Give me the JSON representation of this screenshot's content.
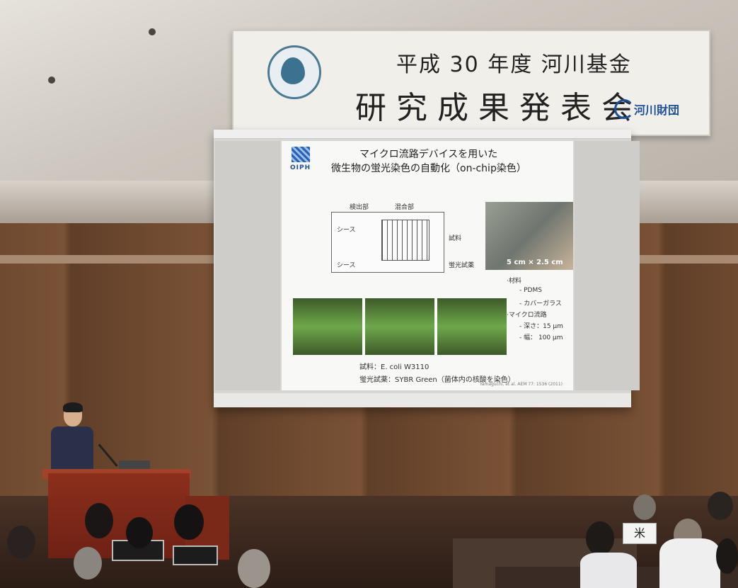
{
  "banner": {
    "line1": "平成 30 年度 河川基金",
    "line2": "研究成果発表会",
    "org": "河川財団"
  },
  "slide": {
    "logo_text": "OIPH",
    "title_line1": "マイクロ流路デバイスを用いた",
    "title_line2": "微生物の蛍光染色の自動化（on-chip染色）",
    "diagram_labels": {
      "detect": "検出部",
      "mix": "混合部",
      "sheath1": "シース",
      "sheath2": "シース",
      "sample": "試料",
      "reagent": "蛍光試薬"
    },
    "chip_size": "5 cm × 2.5 cm",
    "materials": {
      "heading": "·材料",
      "m1": "- PDMS",
      "m2": "- カバーガラス",
      "channel_heading": "·マイクロ流路",
      "depth": "- 深さ：15 µm",
      "width": "- 幅： 100 µm"
    },
    "footer1": "試料：E. coli W3110",
    "footer2": "蛍光試薬：SYBR Green（菌体内の核酸を染色）",
    "citation": "Yamaguchi, et al. AEM 77: 1536 (2011)"
  },
  "desk_sign": "米"
}
